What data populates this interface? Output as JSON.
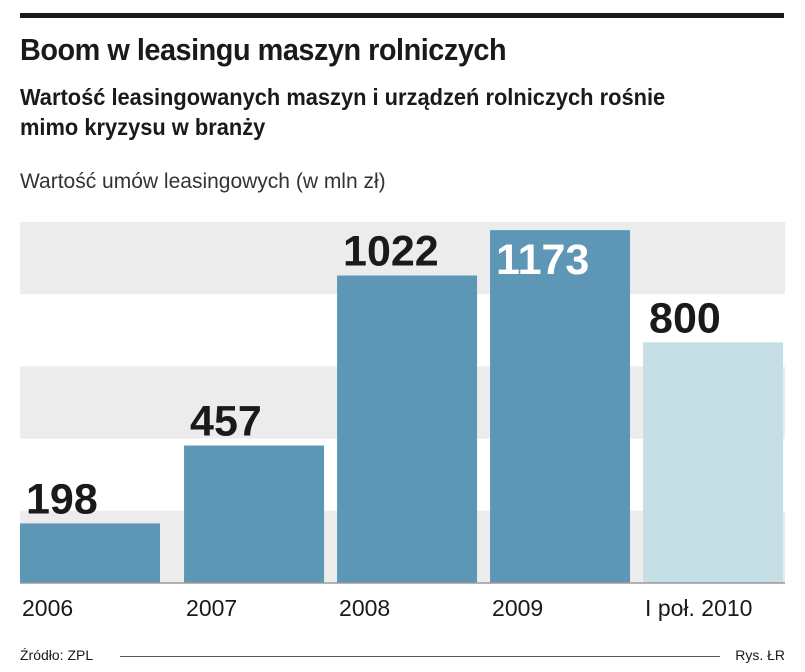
{
  "chart_data": {
    "type": "bar",
    "title": "Boom w leasingu maszyn rolniczych",
    "subtitle": "Wartość leasingowanych maszyn i urządzeń rolniczych rośnie mimo kryzysu w branży",
    "ylabel": "Wartość umów leasingowych (w mln zł)",
    "xlabel": "",
    "categories": [
      "2006",
      "2007",
      "2008",
      "2009",
      "I poł. 2010"
    ],
    "values": [
      198,
      457,
      1022,
      1173,
      800
    ],
    "ylim": [
      0,
      1200
    ],
    "grid": "horizontal bands",
    "colors": {
      "bar": "#5e96b6",
      "bar_highlight": "#5e96b6",
      "bar_partial": "#c6dfe7",
      "band": "#ececec",
      "label_dark": "#1a1a1a",
      "label_light": "#ffffff"
    }
  },
  "footer": {
    "source": "Źródło: ZPL",
    "credit": "Rys. ŁR"
  }
}
